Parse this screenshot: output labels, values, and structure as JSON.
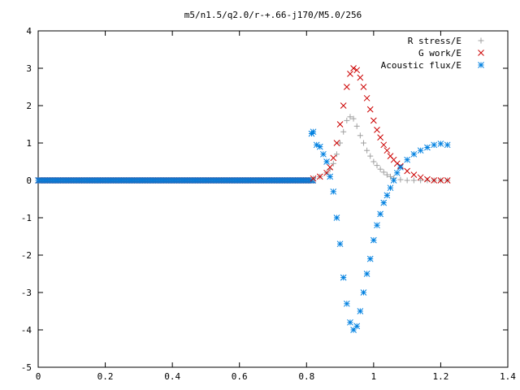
{
  "chart_data": {
    "type": "scatter",
    "title": "m5/n1.5/q2.0/r-+.66-j170/M5.0/256",
    "xlabel": "",
    "ylabel": "",
    "xlim": [
      0,
      1.4
    ],
    "ylim": [
      -5,
      4
    ],
    "grid": false,
    "legend_position": "top-right",
    "x_ticks": [
      "0",
      "0.2",
      "0.4",
      "0.6",
      "0.8",
      "1",
      "1.2",
      "1.4"
    ],
    "y_ticks": [
      "4",
      "3",
      "2",
      "1",
      "0",
      "-1",
      "-2",
      "-3",
      "-4",
      "-5"
    ],
    "series": [
      {
        "name": "R stress/E",
        "marker": "plus",
        "color": "#a0a0a0",
        "x": [
          0.82,
          0.84,
          0.86,
          0.87,
          0.88,
          0.89,
          0.9,
          0.91,
          0.92,
          0.93,
          0.94,
          0.95,
          0.96,
          0.97,
          0.98,
          0.99,
          1.0,
          1.01,
          1.02,
          1.03,
          1.04,
          1.05,
          1.06,
          1.08,
          1.1,
          1.12,
          1.14,
          1.16,
          1.18,
          1.2,
          1.22
        ],
        "y": [
          0.05,
          0.1,
          0.2,
          0.3,
          0.45,
          0.7,
          1.0,
          1.3,
          1.6,
          1.7,
          1.65,
          1.45,
          1.2,
          1.0,
          0.8,
          0.65,
          0.5,
          0.4,
          0.3,
          0.22,
          0.15,
          0.1,
          0.06,
          0.02,
          0.0,
          0.0,
          0.0,
          0.0,
          0.0,
          0.0,
          0.0
        ]
      },
      {
        "name": "G work/E",
        "marker": "cross",
        "color": "#cc0000",
        "x": [
          0.82,
          0.84,
          0.86,
          0.87,
          0.88,
          0.89,
          0.9,
          0.91,
          0.92,
          0.93,
          0.94,
          0.95,
          0.96,
          0.97,
          0.98,
          0.99,
          1.0,
          1.01,
          1.02,
          1.03,
          1.04,
          1.05,
          1.06,
          1.07,
          1.08,
          1.1,
          1.12,
          1.14,
          1.16,
          1.18,
          1.2,
          1.22
        ],
        "y": [
          0.05,
          0.1,
          0.2,
          0.35,
          0.6,
          1.0,
          1.5,
          2.0,
          2.5,
          2.85,
          3.0,
          2.95,
          2.75,
          2.5,
          2.2,
          1.9,
          1.6,
          1.35,
          1.15,
          0.95,
          0.8,
          0.65,
          0.55,
          0.45,
          0.38,
          0.25,
          0.15,
          0.08,
          0.03,
          0.0,
          0.0,
          0.0
        ]
      },
      {
        "name": "Acoustic flux/E",
        "marker": "star",
        "color": "#0080e0",
        "x": [
          0.815,
          0.82,
          0.83,
          0.84,
          0.85,
          0.86,
          0.87,
          0.88,
          0.89,
          0.9,
          0.91,
          0.92,
          0.93,
          0.94,
          0.95,
          0.96,
          0.97,
          0.98,
          0.99,
          1.0,
          1.01,
          1.02,
          1.03,
          1.04,
          1.05,
          1.06,
          1.07,
          1.08,
          1.1,
          1.12,
          1.14,
          1.16,
          1.18,
          1.2,
          1.22
        ],
        "y": [
          1.25,
          1.3,
          0.95,
          0.9,
          0.7,
          0.5,
          0.1,
          -0.3,
          -1.0,
          -1.7,
          -2.6,
          -3.3,
          -3.8,
          -4.0,
          -3.9,
          -3.5,
          -3.0,
          -2.5,
          -2.1,
          -1.6,
          -1.2,
          -0.9,
          -0.6,
          -0.4,
          -0.2,
          0.0,
          0.2,
          0.35,
          0.55,
          0.7,
          0.8,
          0.88,
          0.95,
          0.98,
          0.95
        ]
      }
    ]
  }
}
